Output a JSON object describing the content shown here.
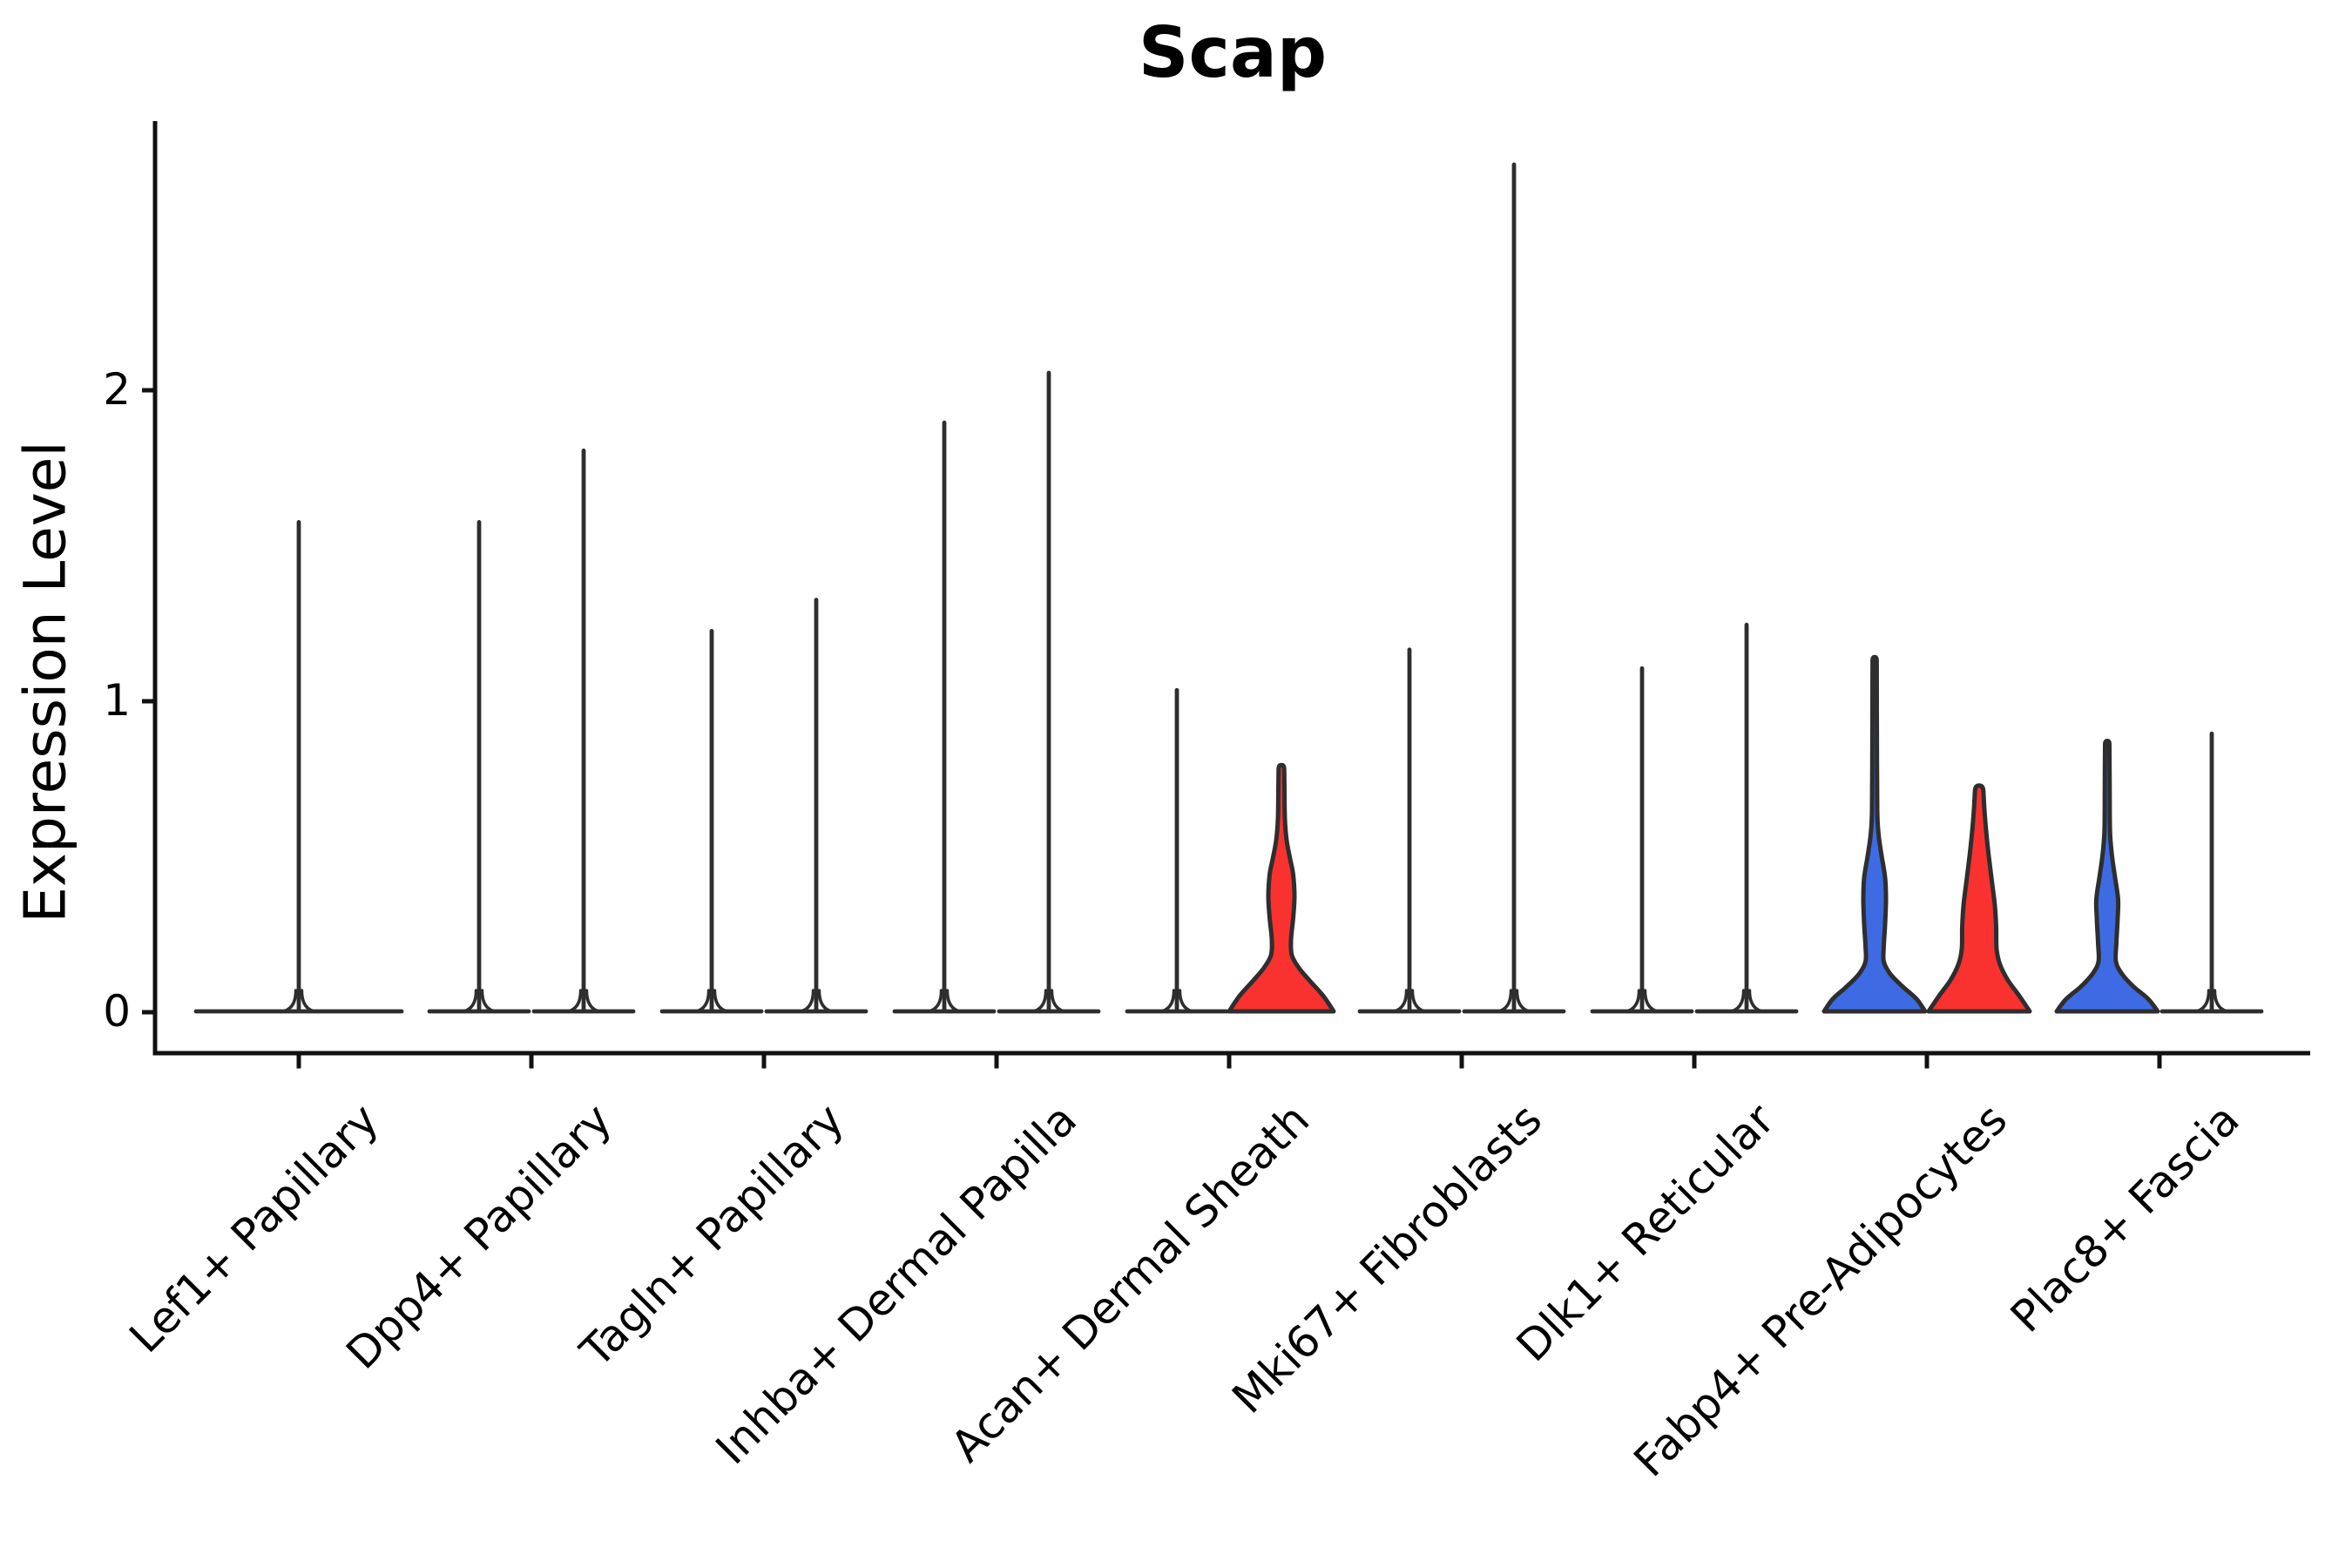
{
  "chart_data": {
    "type": "violin",
    "title": "Scap",
    "ylabel": "Expression Level",
    "y_ticks": [
      0,
      1,
      2
    ],
    "y_tick_labels": [
      "0",
      "1",
      "2"
    ],
    "ylim": [
      -0.13,
      2.87
    ],
    "grid": false,
    "legend": "none",
    "categories": [
      "Lef1+ Papillary",
      "Dpp4+ Papillary",
      "Tagln+ Papillary",
      "Inhba+ Dermal Papilla",
      "Acan+ Dermal Sheath",
      "Mki67+ Fibroblasts",
      "Dlk1+ Reticular",
      "Fabp4+ Pre-Adipocytes",
      "Plac8+ Fascia"
    ],
    "colors": {
      "violin_blue": "#3E6BE4",
      "violin_red": "#F93230",
      "outline": "#2e2e2e",
      "axis": "#111111"
    },
    "violins": [
      {
        "category_index": 0,
        "category": "Lef1+ Papillary",
        "slot": "center",
        "kind": "spike",
        "max": 1.58,
        "base_halfwidth": 121
      },
      {
        "category_index": 1,
        "category": "Dpp4+ Papillary",
        "slot": "left",
        "kind": "spike",
        "max": 1.58,
        "base_halfwidth": 60
      },
      {
        "category_index": 1,
        "category": "Dpp4+ Papillary",
        "slot": "right",
        "kind": "spike",
        "max": 1.81,
        "base_halfwidth": 60
      },
      {
        "category_index": 2,
        "category": "Tagln+ Papillary",
        "slot": "left",
        "kind": "spike",
        "max": 1.23,
        "base_halfwidth": 60
      },
      {
        "category_index": 2,
        "category": "Tagln+ Papillary",
        "slot": "right",
        "kind": "spike",
        "max": 1.33,
        "base_halfwidth": 60
      },
      {
        "category_index": 3,
        "category": "Inhba+ Dermal Papilla",
        "slot": "left",
        "kind": "spike",
        "max": 1.9,
        "base_halfwidth": 60
      },
      {
        "category_index": 3,
        "category": "Inhba+ Dermal Papilla",
        "slot": "right",
        "kind": "spike",
        "max": 2.06,
        "base_halfwidth": 60
      },
      {
        "category_index": 4,
        "category": "Acan+ Dermal Sheath",
        "slot": "left",
        "kind": "spike",
        "max": 1.04,
        "base_halfwidth": 60
      },
      {
        "category_index": 4,
        "category": "Acan+ Dermal Sheath",
        "slot": "right",
        "kind": "shaped",
        "max": 0.78,
        "base_halfwidth": 60,
        "fill": "#F93230",
        "profile": [
          [
            0,
            60
          ],
          [
            0.05,
            48
          ],
          [
            0.1,
            32
          ],
          [
            0.14,
            20
          ],
          [
            0.18,
            12
          ],
          [
            0.23,
            11
          ],
          [
            0.3,
            13.5
          ],
          [
            0.37,
            15
          ],
          [
            0.44,
            13.5
          ],
          [
            0.49,
            10
          ],
          [
            0.55,
            6
          ],
          [
            0.62,
            4
          ],
          [
            0.72,
            3.5
          ],
          [
            0.78,
            3.2
          ]
        ]
      },
      {
        "category_index": 5,
        "category": "Mki67+ Fibroblasts",
        "slot": "left",
        "kind": "spike",
        "max": 1.17,
        "base_halfwidth": 60
      },
      {
        "category_index": 5,
        "category": "Mki67+ Fibroblasts",
        "slot": "right",
        "kind": "spike",
        "max": 2.73,
        "base_halfwidth": 60
      },
      {
        "category_index": 6,
        "category": "Dlk1+ Reticular",
        "slot": "left",
        "kind": "spike",
        "max": 1.11,
        "base_halfwidth": 60
      },
      {
        "category_index": 6,
        "category": "Dlk1+ Reticular",
        "slot": "right",
        "kind": "spike",
        "max": 1.25,
        "base_halfwidth": 60
      },
      {
        "category_index": 7,
        "category": "Fabp4+ Pre-Adipocytes",
        "slot": "left",
        "kind": "shaped",
        "max": 1.13,
        "base_halfwidth": 60,
        "fill": "#3E6BE4",
        "profile": [
          [
            0,
            58
          ],
          [
            0.04,
            48
          ],
          [
            0.08,
            32
          ],
          [
            0.12,
            18
          ],
          [
            0.16,
            10.5
          ],
          [
            0.21,
            10.5
          ],
          [
            0.28,
            12
          ],
          [
            0.36,
            13
          ],
          [
            0.43,
            12
          ],
          [
            0.5,
            8
          ],
          [
            0.57,
            4.5
          ],
          [
            0.65,
            3
          ],
          [
            0.9,
            2.6
          ],
          [
            1.13,
            2.4
          ]
        ]
      },
      {
        "category_index": 7,
        "category": "Fabp4+ Pre-Adipocytes",
        "slot": "right",
        "kind": "shaped",
        "max": 0.71,
        "base_halfwidth": 60,
        "fill": "#F93230",
        "profile": [
          [
            0,
            58
          ],
          [
            0.05,
            46
          ],
          [
            0.1,
            33
          ],
          [
            0.15,
            24
          ],
          [
            0.2,
            20
          ],
          [
            0.27,
            19.5
          ],
          [
            0.34,
            18
          ],
          [
            0.42,
            14.5
          ],
          [
            0.5,
            11
          ],
          [
            0.58,
            8
          ],
          [
            0.65,
            6
          ],
          [
            0.71,
            4.8
          ]
        ]
      },
      {
        "category_index": 8,
        "category": "Plac8+ Fascia",
        "slot": "left",
        "kind": "shaped",
        "max": 0.86,
        "base_halfwidth": 60,
        "fill": "#3E6BE4",
        "profile": [
          [
            0,
            58
          ],
          [
            0.04,
            47
          ],
          [
            0.08,
            30
          ],
          [
            0.12,
            17
          ],
          [
            0.16,
            10
          ],
          [
            0.22,
            10.5
          ],
          [
            0.3,
            12
          ],
          [
            0.36,
            12.5
          ],
          [
            0.43,
            9
          ],
          [
            0.5,
            5.5
          ],
          [
            0.58,
            3.2
          ],
          [
            0.72,
            2.8
          ],
          [
            0.86,
            2.5
          ]
        ]
      },
      {
        "category_index": 8,
        "category": "Plac8+ Fascia",
        "slot": "right",
        "kind": "spike",
        "max": 0.9,
        "base_halfwidth": 60
      }
    ]
  }
}
